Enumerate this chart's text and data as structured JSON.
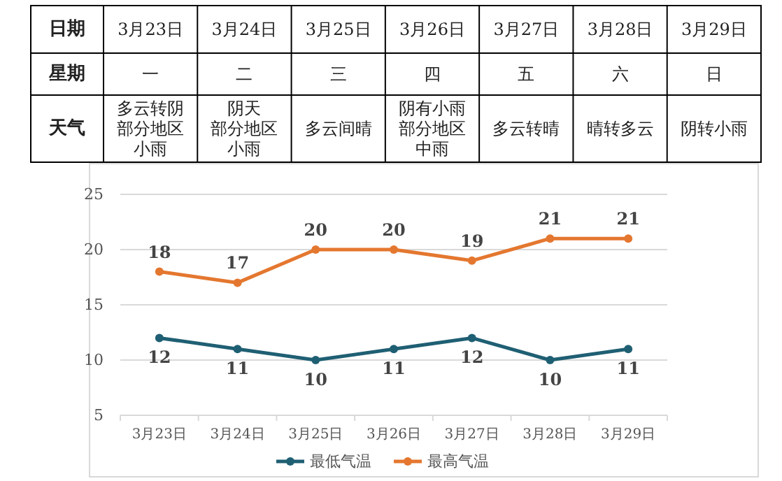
{
  "chart_data": [
    {
      "type": "other",
      "categories": [
        "3月23日",
        "3月24日",
        "3月25日",
        "3月26日",
        "3月27日",
        "3月28日",
        "3月29日"
      ],
      "y_categories": [
        "日期",
        "星期",
        "天气"
      ],
      "cell_labels": [
        [
          "一",
          "二",
          "三",
          "四",
          "五",
          "六",
          "日"
        ],
        [
          [
            "多云转阴",
            "部分地区",
            "小雨"
          ],
          [
            "阴天",
            "部分地区",
            "小雨"
          ],
          "多云间晴",
          [
            "阴有小雨",
            "部分地区",
            "中雨"
          ],
          "多云转晴",
          "晴转多云",
          "阴转小雨"
        ]
      ]
    },
    {
      "type": "line",
      "categories": [
        "3月23日",
        "3月24日",
        "3月25日",
        "3月26日",
        "3月27日",
        "3月28日",
        "3月29日"
      ],
      "series": [
        {
          "name": "最低气温",
          "color": "#1f5f73",
          "values": [
            12,
            11,
            10,
            11,
            12,
            10,
            11
          ]
        },
        {
          "name": "最高气温",
          "color": "#e4772f",
          "values": [
            18,
            17,
            20,
            20,
            19,
            21,
            21
          ]
        }
      ],
      "ylim": [
        5,
        25
      ],
      "yticks": [
        5,
        10,
        15,
        20,
        25
      ],
      "grid": "y",
      "legend": "bottom",
      "marker": "circle",
      "data_labels": true
    }
  ]
}
